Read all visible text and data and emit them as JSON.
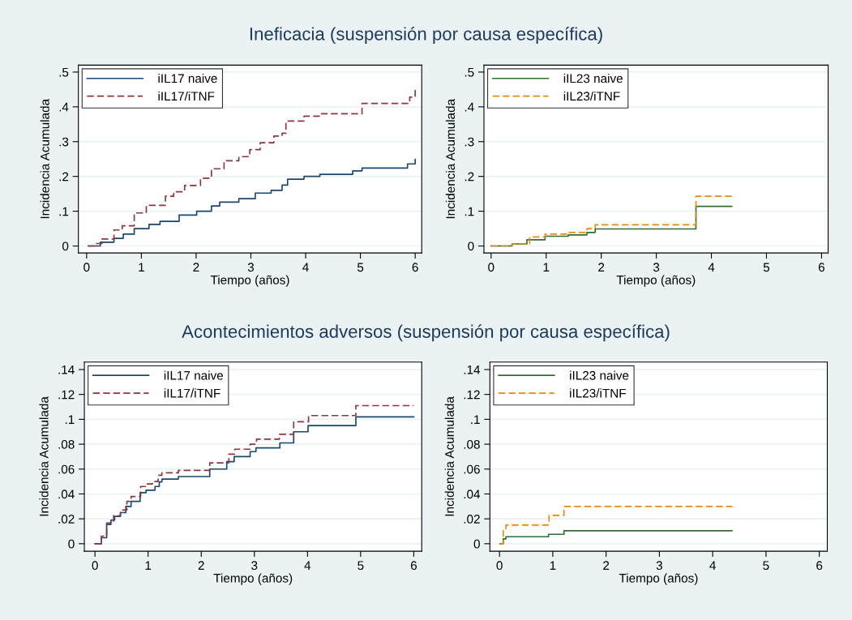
{
  "chart_data": [
    {
      "type": "step",
      "title": "Ineficacia (suspensión por causa específica)",
      "xlabel": "Tiempo (años)",
      "ylabel": "Incidencia Acumulada",
      "xlim": [
        -0.15,
        6.12
      ],
      "ylim": [
        -0.02,
        0.52
      ],
      "xticks": [
        0,
        1,
        2,
        3,
        4,
        5,
        6
      ],
      "yticks": [
        0,
        {
          "value": 0.1,
          "label": ".1"
        },
        {
          "value": 0.2,
          "label": ".2"
        },
        {
          "value": 0.3,
          "label": ".3"
        },
        {
          "value": 0.4,
          "label": ".4"
        },
        {
          "value": 0.5,
          "label": ".5"
        }
      ],
      "grid": "y",
      "legend": "top left",
      "series": [
        {
          "name": "iIL17 naive",
          "color": "#1a476f",
          "line_style": "solid",
          "x": [
            0.03,
            0.25,
            0.5,
            0.67,
            0.87,
            1.14,
            1.34,
            1.69,
            2.01,
            2.28,
            2.43,
            2.78,
            3.08,
            3.37,
            3.57,
            3.67,
            3.97,
            4.26,
            4.86,
            5.03,
            5.86,
            6.0
          ],
          "values": [
            0.0,
            0.011,
            0.022,
            0.034,
            0.05,
            0.062,
            0.071,
            0.089,
            0.1,
            0.115,
            0.126,
            0.136,
            0.152,
            0.16,
            0.175,
            0.192,
            0.2,
            0.206,
            0.216,
            0.224,
            0.236,
            0.249
          ]
        },
        {
          "name": "iIL17/iTNF",
          "color": "#90353b",
          "line_style": "dashed",
          "x": [
            0.03,
            0.18,
            0.28,
            0.5,
            0.65,
            0.87,
            1.09,
            1.44,
            1.59,
            1.79,
            2.08,
            2.28,
            2.51,
            2.78,
            2.98,
            3.17,
            3.42,
            3.57,
            3.64,
            3.97,
            4.29,
            5.03,
            5.9,
            6.0
          ],
          "values": [
            0.0,
            0.007,
            0.02,
            0.046,
            0.058,
            0.095,
            0.117,
            0.143,
            0.156,
            0.174,
            0.195,
            0.222,
            0.245,
            0.257,
            0.277,
            0.297,
            0.316,
            0.324,
            0.359,
            0.373,
            0.38,
            0.41,
            0.428,
            0.449
          ]
        }
      ]
    },
    {
      "type": "step",
      "xlabel": "Tiempo (años)",
      "ylabel": "Incidencia Acumulada",
      "xlim": [
        -0.13,
        6.12
      ],
      "ylim": [
        -0.02,
        0.52
      ],
      "xticks": [
        0,
        1,
        2,
        3,
        4,
        5,
        6
      ],
      "yticks": [
        0,
        {
          "value": 0.1,
          "label": ".1"
        },
        {
          "value": 0.2,
          "label": ".2"
        },
        {
          "value": 0.3,
          "label": ".3"
        },
        {
          "value": 0.4,
          "label": ".4"
        },
        {
          "value": 0.5,
          "label": ".5"
        }
      ],
      "grid": "y",
      "legend": "top left",
      "series": [
        {
          "name": "iIL23 naive",
          "color": "#2e7030",
          "line_style": "solid",
          "x": [
            0.0,
            0.38,
            0.65,
            0.98,
            1.4,
            1.74,
            1.89,
            3.72,
            4.37
          ],
          "values": [
            0.0,
            0.006,
            0.018,
            0.028,
            0.032,
            0.039,
            0.049,
            0.114,
            0.114
          ]
        },
        {
          "name": "iIL23/iTNF",
          "color": "#e8890c",
          "line_style": "dashed",
          "x": [
            0.0,
            0.38,
            0.7,
            0.98,
            1.4,
            1.74,
            1.89,
            3.72,
            4.38
          ],
          "values": [
            0.0,
            0.006,
            0.026,
            0.034,
            0.039,
            0.05,
            0.061,
            0.143,
            0.143
          ]
        }
      ]
    },
    {
      "type": "step",
      "title": "Acontecimientos adversos (suspensión por causa específica)",
      "xlabel": "Tiempo (años)",
      "ylabel": "Incidencia Acumulada",
      "xlim": [
        -0.2,
        6.15
      ],
      "ylim": [
        -0.006,
        0.146
      ],
      "xticks": [
        0,
        1,
        2,
        3,
        4,
        5,
        6
      ],
      "yticks": [
        0,
        {
          "value": 0.02,
          "label": ".02"
        },
        {
          "value": 0.04,
          "label": ".04"
        },
        {
          "value": 0.06,
          "label": ".06"
        },
        {
          "value": 0.08,
          "label": ".08"
        },
        {
          "value": 0.1,
          "label": ".1"
        },
        {
          "value": 0.12,
          "label": ".12"
        },
        {
          "value": 0.14,
          "label": ".14"
        }
      ],
      "grid": "y",
      "legend": "top left",
      "series": [
        {
          "name": "iIL17 naive",
          "color": "#1a476f",
          "line_style": "solid",
          "x": [
            0.0,
            0.12,
            0.22,
            0.3,
            0.37,
            0.48,
            0.58,
            0.68,
            0.85,
            0.96,
            1.13,
            1.21,
            1.26,
            1.57,
            2.16,
            2.48,
            2.62,
            2.92,
            3.03,
            3.48,
            3.74,
            4.01,
            4.91,
            6.0
          ],
          "values": [
            0.0,
            0.0048,
            0.0155,
            0.019,
            0.022,
            0.025,
            0.03,
            0.034,
            0.041,
            0.043,
            0.046,
            0.0497,
            0.052,
            0.054,
            0.06,
            0.066,
            0.07,
            0.074,
            0.077,
            0.081,
            0.09,
            0.095,
            0.102,
            0.102
          ]
        },
        {
          "name": "iIL17/iTNF",
          "color": "#90353b",
          "line_style": "dashed",
          "x": [
            0.0,
            0.12,
            0.22,
            0.35,
            0.48,
            0.6,
            0.68,
            0.86,
            0.97,
            1.08,
            1.19,
            1.26,
            1.57,
            2.16,
            2.52,
            2.63,
            2.92,
            3.04,
            3.47,
            3.74,
            4.02,
            4.91,
            6.0
          ],
          "values": [
            0.0,
            0.0061,
            0.0166,
            0.0225,
            0.027,
            0.034,
            0.038,
            0.046,
            0.048,
            0.05,
            0.055,
            0.057,
            0.059,
            0.065,
            0.072,
            0.076,
            0.08,
            0.084,
            0.088,
            0.098,
            0.103,
            0.111,
            0.111
          ]
        }
      ]
    },
    {
      "type": "step",
      "xlabel": "Tiempo (años)",
      "ylabel": "Incidencia Acumulada",
      "xlim": [
        -0.18,
        6.15
      ],
      "ylim": [
        -0.006,
        0.146
      ],
      "xticks": [
        0,
        1,
        2,
        3,
        4,
        5,
        6
      ],
      "yticks": [
        0,
        {
          "value": 0.02,
          "label": ".02"
        },
        {
          "value": 0.04,
          "label": ".04"
        },
        {
          "value": 0.06,
          "label": ".06"
        },
        {
          "value": 0.08,
          "label": ".08"
        },
        {
          "value": 0.1,
          "label": ".1"
        },
        {
          "value": 0.12,
          "label": ".12"
        },
        {
          "value": 0.14,
          "label": ".14"
        }
      ],
      "grid": "y",
      "legend": "top left",
      "series": [
        {
          "name": "iIL23 naive",
          "color": "#2e7030",
          "line_style": "solid",
          "x": [
            0.01,
            0.07,
            0.12,
            0.92,
            1.21,
            4.36
          ],
          "values": [
            0.0,
            0.0039,
            0.0056,
            0.0076,
            0.0104,
            0.0104
          ]
        },
        {
          "name": "iIL23/iTNF",
          "color": "#e8890c",
          "line_style": "dashed",
          "x": [
            0.01,
            0.07,
            0.12,
            0.93,
            1.21,
            4.37
          ],
          "values": [
            0.0,
            0.0106,
            0.015,
            0.0228,
            0.03,
            0.03
          ]
        }
      ]
    }
  ]
}
